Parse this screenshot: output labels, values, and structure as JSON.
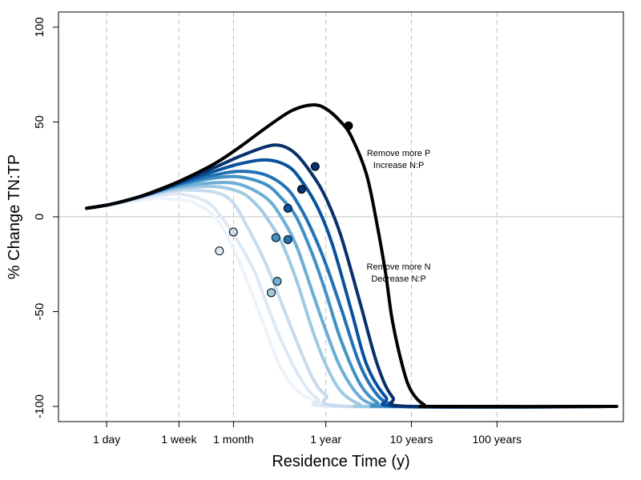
{
  "chart_data": {
    "type": "line",
    "title": "",
    "xlabel": "Residence Time (y)",
    "ylabel": "% Change TN:TP",
    "x_scale": "log10",
    "x_unit": "years",
    "xlim": [
      0.00075,
      3000
    ],
    "ylim": [
      -108,
      108
    ],
    "x_ticks": [
      {
        "label": "1 day",
        "value": 0.00274
      },
      {
        "label": "1 week",
        "value": 0.0192
      },
      {
        "label": "1 month",
        "value": 0.0833
      },
      {
        "label": "1 year",
        "value": 1
      },
      {
        "label": "10 years",
        "value": 10
      },
      {
        "label": "100 years",
        "value": 100
      }
    ],
    "y_ticks": [
      {
        "label": "100",
        "value": 100
      },
      {
        "label": "50",
        "value": 50
      },
      {
        "label": "0",
        "value": 0
      },
      {
        "label": "-50",
        "value": -50
      },
      {
        "label": "-100",
        "value": -100
      }
    ],
    "grid": "vertical dashed at x ticks",
    "reference_line_y": 0,
    "annotations": [
      {
        "lines": [
          "Remove more P",
          "Increase N:P"
        ],
        "x": 7.1,
        "y": 29
      },
      {
        "lines": [
          "Remove more N",
          "Decrease N:P"
        ],
        "x": 7.1,
        "y": -31
      }
    ],
    "series": [
      {
        "color": "#eef3fb",
        "points": [
          [
            0.0016,
            4.5
          ],
          [
            0.003,
            6.5
          ],
          [
            0.006,
            8.5
          ],
          [
            0.01,
            9.5
          ],
          [
            0.02,
            9
          ],
          [
            0.03,
            7
          ],
          [
            0.05,
            0
          ],
          [
            0.07,
            -10
          ],
          [
            0.1,
            -25
          ],
          [
            0.15,
            -45
          ],
          [
            0.2,
            -60
          ],
          [
            0.3,
            -80
          ],
          [
            0.5,
            -93
          ],
          [
            1,
            -99
          ],
          [
            2,
            -100
          ],
          [
            2500,
            -100
          ]
        ],
        "marker": null
      },
      {
        "color": "#dde8f5",
        "points": [
          [
            0.0016,
            4.5
          ],
          [
            0.003,
            6.5
          ],
          [
            0.006,
            9
          ],
          [
            0.01,
            11
          ],
          [
            0.02,
            12
          ],
          [
            0.04,
            8
          ],
          [
            0.06,
            0
          ],
          [
            0.1,
            -15
          ],
          [
            0.15,
            -30
          ],
          [
            0.2,
            -45
          ],
          [
            0.3,
            -65
          ],
          [
            0.5,
            -85
          ],
          [
            0.8,
            -96
          ],
          [
            1.5,
            -100
          ],
          [
            2500,
            -100
          ]
        ],
        "marker": {
          "x": 0.057,
          "y": -18
        }
      },
      {
        "color": "#c6dbef",
        "points": [
          [
            0.0016,
            4.5
          ],
          [
            0.003,
            6.5
          ],
          [
            0.006,
            9.5
          ],
          [
            0.01,
            12
          ],
          [
            0.02,
            14
          ],
          [
            0.05,
            13
          ],
          [
            0.08,
            8
          ],
          [
            0.12,
            -5
          ],
          [
            0.2,
            -25
          ],
          [
            0.3,
            -45
          ],
          [
            0.45,
            -65
          ],
          [
            0.7,
            -85
          ],
          [
            1,
            -94
          ],
          [
            2,
            -100
          ],
          [
            2500,
            -100
          ]
        ],
        "marker": {
          "x": 0.083,
          "y": -8
        }
      },
      {
        "color": "#9ecae1",
        "points": [
          [
            0.0016,
            4.5
          ],
          [
            0.003,
            6.5
          ],
          [
            0.006,
            10
          ],
          [
            0.01,
            12.5
          ],
          [
            0.02,
            15
          ],
          [
            0.05,
            16
          ],
          [
            0.1,
            13
          ],
          [
            0.15,
            7
          ],
          [
            0.2,
            0
          ],
          [
            0.3,
            -13
          ],
          [
            0.45,
            -33
          ],
          [
            0.7,
            -60
          ],
          [
            1,
            -78
          ],
          [
            1.5,
            -92
          ],
          [
            2.5,
            -99
          ],
          [
            4,
            -100
          ],
          [
            2500,
            -100
          ]
        ],
        "marker": {
          "x": 0.23,
          "y": -40
        }
      },
      {
        "color": "#6baed6",
        "points": [
          [
            0.0016,
            4.5
          ],
          [
            0.003,
            6.5
          ],
          [
            0.006,
            10
          ],
          [
            0.01,
            13
          ],
          [
            0.02,
            16
          ],
          [
            0.05,
            18
          ],
          [
            0.1,
            17
          ],
          [
            0.2,
            10
          ],
          [
            0.3,
            0
          ],
          [
            0.45,
            -15
          ],
          [
            0.7,
            -40
          ],
          [
            1,
            -60
          ],
          [
            1.5,
            -80
          ],
          [
            2.5,
            -95
          ],
          [
            4,
            -99.5
          ],
          [
            6,
            -100
          ],
          [
            2500,
            -100
          ]
        ],
        "marker": {
          "x": 0.27,
          "y": -34
        }
      },
      {
        "color": "#4292c6",
        "points": [
          [
            0.0016,
            4.5
          ],
          [
            0.003,
            6.5
          ],
          [
            0.006,
            10
          ],
          [
            0.01,
            13
          ],
          [
            0.02,
            17
          ],
          [
            0.05,
            20.5
          ],
          [
            0.1,
            21
          ],
          [
            0.2,
            17
          ],
          [
            0.3,
            10
          ],
          [
            0.45,
            0
          ],
          [
            0.7,
            -20
          ],
          [
            1,
            -40
          ],
          [
            1.5,
            -65
          ],
          [
            2.5,
            -88
          ],
          [
            4,
            -98
          ],
          [
            6,
            -100
          ],
          [
            2500,
            -100
          ]
        ],
        "marker": {
          "x": 0.26,
          "y": -11
        }
      },
      {
        "color": "#2171b5",
        "points": [
          [
            0.0016,
            4.5
          ],
          [
            0.003,
            6.5
          ],
          [
            0.006,
            10
          ],
          [
            0.01,
            13
          ],
          [
            0.02,
            17.5
          ],
          [
            0.05,
            22
          ],
          [
            0.1,
            24
          ],
          [
            0.2,
            22
          ],
          [
            0.35,
            15
          ],
          [
            0.5,
            5
          ],
          [
            0.7,
            -8
          ],
          [
            1,
            -25
          ],
          [
            1.5,
            -48
          ],
          [
            2.5,
            -78
          ],
          [
            4,
            -94
          ],
          [
            6,
            -99
          ],
          [
            10,
            -100
          ],
          [
            2500,
            -100
          ]
        ],
        "marker": {
          "x": 0.36,
          "y": -12
        }
      },
      {
        "color": "#08519c",
        "points": [
          [
            0.0016,
            4.5
          ],
          [
            0.003,
            6.5
          ],
          [
            0.006,
            10
          ],
          [
            0.01,
            13
          ],
          [
            0.02,
            18
          ],
          [
            0.05,
            24
          ],
          [
            0.1,
            28
          ],
          [
            0.2,
            30
          ],
          [
            0.35,
            27
          ],
          [
            0.5,
            20
          ],
          [
            0.8,
            5
          ],
          [
            1.2,
            -15
          ],
          [
            2,
            -50
          ],
          [
            3,
            -78
          ],
          [
            5,
            -95
          ],
          [
            8,
            -100
          ],
          [
            2500,
            -100
          ]
        ],
        "marker": {
          "x": 0.36,
          "y": 4.5
        }
      },
      {
        "color": "#08306b",
        "points": [
          [
            0.0016,
            4.5
          ],
          [
            0.003,
            6.5
          ],
          [
            0.006,
            10
          ],
          [
            0.01,
            13
          ],
          [
            0.02,
            18.5
          ],
          [
            0.05,
            26
          ],
          [
            0.1,
            32
          ],
          [
            0.2,
            37
          ],
          [
            0.3,
            37.5
          ],
          [
            0.45,
            33
          ],
          [
            0.7,
            22
          ],
          [
            1,
            10
          ],
          [
            1.5,
            -10
          ],
          [
            2.5,
            -45
          ],
          [
            4,
            -78
          ],
          [
            6,
            -95
          ],
          [
            10,
            -100
          ],
          [
            2500,
            -100
          ]
        ],
        "marker": {
          "x": 0.52,
          "y": 14.5
        }
      },
      {
        "color": "#000000",
        "points": [
          [
            0.0016,
            4.5
          ],
          [
            0.003,
            6.5
          ],
          [
            0.006,
            10
          ],
          [
            0.01,
            13.5
          ],
          [
            0.02,
            19
          ],
          [
            0.05,
            28
          ],
          [
            0.1,
            37
          ],
          [
            0.2,
            47
          ],
          [
            0.4,
            56
          ],
          [
            0.7,
            59
          ],
          [
            1,
            57
          ],
          [
            1.5,
            50
          ],
          [
            2,
            42
          ],
          [
            3,
            22
          ],
          [
            4,
            -5
          ],
          [
            5,
            -30
          ],
          [
            6,
            -55
          ],
          [
            8,
            -80
          ],
          [
            10,
            -92
          ],
          [
            14,
            -99
          ],
          [
            20,
            -100
          ],
          [
            2500,
            -100
          ]
        ],
        "marker": {
          "x": 1.84,
          "y": 48
        }
      },
      {
        "color": "#08306b",
        "points": [],
        "marker": {
          "x": 0.75,
          "y": 26.5
        }
      }
    ]
  }
}
